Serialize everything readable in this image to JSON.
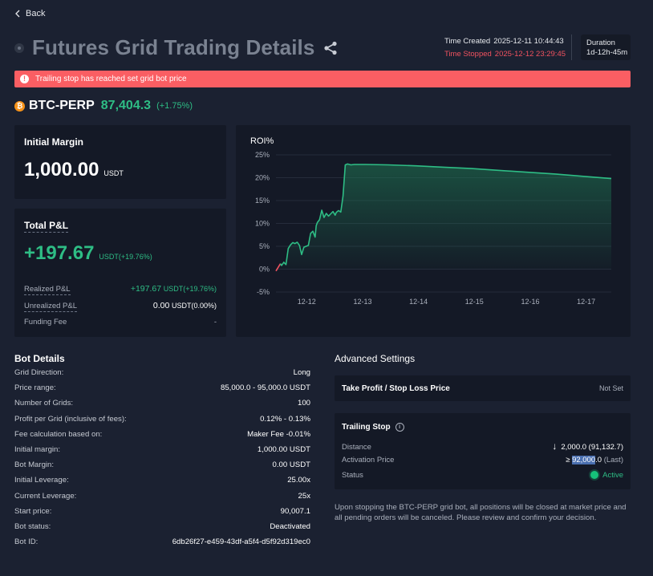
{
  "nav": {
    "back_label": "Back"
  },
  "header": {
    "title": "Futures Grid Trading Details",
    "time_created_label": "Time Created",
    "time_created": "2025-12-11 10:44:43",
    "time_stopped_label": "Time Stopped",
    "time_stopped": "2025-12-12 23:29:45",
    "duration_label": "Duration",
    "duration": "1d-12h-45m"
  },
  "alert": {
    "text": "Trailing stop has reached set grid bot price",
    "icon": "exclamation-icon"
  },
  "ticker": {
    "symbol": "BTC-PERP",
    "price": "87,404.3",
    "change": "(+1.75%)",
    "icon": "bitcoin-icon"
  },
  "initial_margin": {
    "label": "Initial Margin",
    "value": "1,000.00",
    "unit": "USDT"
  },
  "pnl": {
    "label": "Total P&L",
    "value": "+197.67",
    "unit": "USDT(+19.76%)",
    "rows": [
      {
        "label": "Realized P&L",
        "value": "+197.67",
        "unit": "USDT(+19.76%)"
      },
      {
        "label": "Unrealized P&L",
        "value": "0.00",
        "unit": "USDT(0.00%)"
      },
      {
        "label": "Funding Fee",
        "value": "-",
        "unit": ""
      }
    ]
  },
  "chart_data": {
    "type": "area",
    "title": "ROI%",
    "xlabel": "",
    "ylabel": "",
    "x_ticks": [
      "12-12",
      "12-13",
      "12-14",
      "12-15",
      "12-16",
      "12-17"
    ],
    "y_ticks": [
      "25%",
      "20%",
      "15%",
      "10%",
      "5%",
      "0%",
      "-5%"
    ],
    "ylim": [
      -5,
      25
    ],
    "xlim": [
      0,
      6.0
    ],
    "grid": true,
    "colors": {
      "line": "#2ebd85",
      "negative": "#f0525f"
    },
    "series": [
      {
        "x": [
          0.0,
          0.04,
          0.08,
          0.1,
          0.14,
          0.18,
          0.22,
          0.26,
          0.3,
          0.34,
          0.38,
          0.42,
          0.46,
          0.5,
          0.54,
          0.58,
          0.62,
          0.66,
          0.7,
          0.72,
          0.74,
          0.78,
          0.82,
          0.86,
          0.9,
          0.94,
          0.98,
          1.02,
          1.06,
          1.08,
          1.12,
          1.16,
          1.2,
          1.24,
          1.26,
          1.28,
          1.34,
          1.4,
          1.6,
          2.0,
          2.5,
          3.0,
          3.5,
          4.0,
          4.5,
          5.0,
          5.5,
          6.0
        ],
        "y": [
          -0.4,
          -0.5,
          1.2,
          0.8,
          1.5,
          1.0,
          4.5,
          5.3,
          5.8,
          5.6,
          5.9,
          5.2,
          3.2,
          4.8,
          5.0,
          5.2,
          7.8,
          8.3,
          7.0,
          9.5,
          10.2,
          10.8,
          12.9,
          11.3,
          12.2,
          11.6,
          12.1,
          12.6,
          11.8,
          12.4,
          12.8,
          12.5,
          16.0,
          22.8,
          22.9,
          23.0,
          22.8,
          22.9,
          22.9,
          22.8,
          22.6,
          22.3,
          22.0,
          21.6,
          21.2,
          20.8,
          20.3,
          19.8
        ]
      }
    ]
  },
  "bot_details": {
    "title": "Bot Details",
    "rows": [
      {
        "label": "Grid Direction:",
        "value": "Long"
      },
      {
        "label": "Price range:",
        "value": "85,000.0 - 95,000.0 USDT"
      },
      {
        "label": "Number of Grids:",
        "value": "100"
      },
      {
        "label": "Profit per Grid (inclusive of fees):",
        "value": "0.12% - 0.13%"
      },
      {
        "label": "Fee calculation based on:",
        "value": "Maker Fee -0.01%"
      },
      {
        "label": "Initial margin:",
        "value": "1,000.00 USDT"
      },
      {
        "label": "Bot Margin:",
        "value": "0.00 USDT"
      },
      {
        "label": "Initial Leverage:",
        "value": "25.00x"
      },
      {
        "label": "Current Leverage:",
        "value": "25x"
      },
      {
        "label": "Start price:",
        "value": "90,007.1"
      },
      {
        "label": "Bot status:",
        "value": "Deactivated"
      },
      {
        "label": "Bot ID:",
        "value": "6db26f27-e459-43df-a5f4-d5f92d319ec0"
      }
    ]
  },
  "advanced": {
    "title": "Advanced Settings",
    "tpsl_label": "Take Profit / Stop Loss Price",
    "tpsl_value": "Not Set",
    "trailing_title": "Trailing Stop",
    "distance_label": "Distance",
    "distance_value": "2,000.0 (91,132.7)",
    "activation_label": "Activation Price",
    "activation_prefix": "≥",
    "activation_highlight": "92,000",
    "activation_rest": ".0",
    "activation_suffix": "(Last)",
    "status_label": "Status",
    "status_value": "Active",
    "note": "Upon stopping the BTC-PERP grid bot, all positions will be closed at market price and all pending orders will be canceled. Please review and confirm your decision."
  }
}
